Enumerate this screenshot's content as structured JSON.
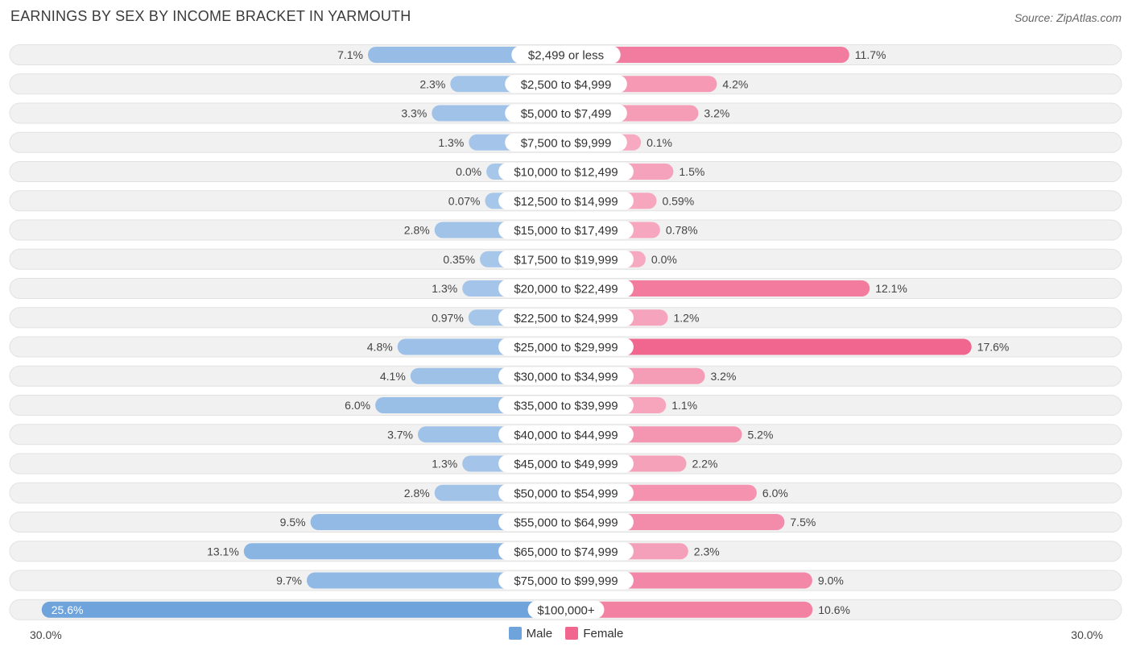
{
  "header": {
    "title": "Earnings by Sex by Income Bracket in Yarmouth",
    "source": "Source: ZipAtlas.com"
  },
  "colors": {
    "male": "#6ea3dc",
    "male_light": "#a7c7ea",
    "female": "#f0668f",
    "female_light": "#f6a9c0",
    "row_bg": "#f1f1f1"
  },
  "chart_data": {
    "type": "bar",
    "orientation": "horizontal-diverging",
    "title": "Earnings by Sex by Income Bracket in Yarmouth",
    "categories": [
      "$2,499 or less",
      "$2,500 to $4,999",
      "$5,000 to $7,499",
      "$7,500 to $9,999",
      "$10,000 to $12,499",
      "$12,500 to $14,999",
      "$15,000 to $17,499",
      "$17,500 to $19,999",
      "$20,000 to $22,499",
      "$22,500 to $24,999",
      "$25,000 to $29,999",
      "$30,000 to $34,999",
      "$35,000 to $39,999",
      "$40,000 to $44,999",
      "$45,000 to $49,999",
      "$50,000 to $54,999",
      "$55,000 to $64,999",
      "$65,000 to $74,999",
      "$75,000 to $99,999",
      "$100,000+"
    ],
    "series": [
      {
        "name": "Male",
        "values": [
          7.1,
          2.3,
          3.3,
          1.3,
          0.0,
          0.07,
          2.8,
          0.35,
          1.3,
          0.97,
          4.8,
          4.1,
          6.0,
          3.7,
          1.3,
          2.8,
          9.5,
          13.1,
          9.7,
          25.6
        ],
        "labels": [
          "7.1%",
          "2.3%",
          "3.3%",
          "1.3%",
          "0.0%",
          "0.07%",
          "2.8%",
          "0.35%",
          "1.3%",
          "0.97%",
          "4.8%",
          "4.1%",
          "6.0%",
          "3.7%",
          "1.3%",
          "2.8%",
          "9.5%",
          "13.1%",
          "9.7%",
          "25.6%"
        ]
      },
      {
        "name": "Female",
        "values": [
          11.7,
          4.2,
          3.2,
          0.1,
          1.5,
          0.59,
          0.78,
          0.0,
          12.1,
          1.2,
          17.6,
          3.2,
          1.1,
          5.2,
          2.2,
          6.0,
          7.5,
          2.3,
          9.0,
          10.6
        ],
        "labels": [
          "11.7%",
          "4.2%",
          "3.2%",
          "0.1%",
          "1.5%",
          "0.59%",
          "0.78%",
          "0.0%",
          "12.1%",
          "1.2%",
          "17.6%",
          "3.2%",
          "1.1%",
          "5.2%",
          "2.2%",
          "6.0%",
          "7.5%",
          "2.3%",
          "9.0%",
          "10.6%"
        ]
      }
    ],
    "axis": {
      "max": 30.0,
      "left_label": "30.0%",
      "right_label": "30.0%"
    },
    "legend": [
      "Male",
      "Female"
    ],
    "legend_position": "bottom-center"
  }
}
